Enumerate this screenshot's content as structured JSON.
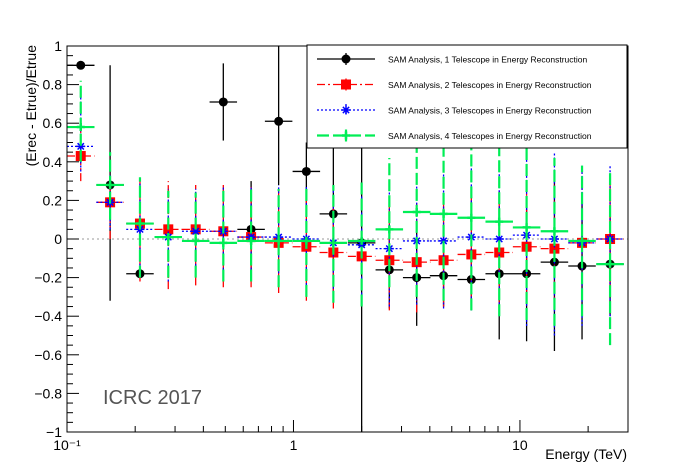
{
  "chart_data": {
    "type": "scatter",
    "xscale": "log",
    "xlim": [
      0.1,
      30
    ],
    "ylim": [
      -1,
      1
    ],
    "xlabel": "Energy (TeV)",
    "ylabel": "(Erec - Etrue)/Etrue",
    "annotation": "ICRC 2017",
    "y_ticks": [
      -1,
      -0.8,
      -0.6,
      -0.4,
      -0.2,
      0,
      0.2,
      0.4,
      0.6,
      0.8,
      1
    ],
    "y_tick_labels": [
      "−1",
      "−0.8",
      "−0.6",
      "−0.4",
      "−0.2",
      "0",
      "0.2",
      "0.4",
      "0.6",
      "0.8",
      "1"
    ],
    "x_ticks": [
      0.1,
      1,
      10
    ],
    "x_tick_labels": [
      "10⁻¹",
      "1",
      "10"
    ],
    "reference_line": 0,
    "legend_position": "top-right",
    "series": [
      {
        "name": "SAM Analysis, 1 Telescope in Energy Reconstruction",
        "color": "#000000",
        "marker": "circle",
        "line": "solid",
        "x": [
          0.115,
          0.155,
          0.21,
          0.28,
          0.37,
          0.49,
          0.65,
          0.86,
          1.14,
          1.5,
          2.0,
          2.65,
          3.5,
          4.6,
          6.1,
          8.1,
          10.7,
          14.2,
          18.8,
          25.0
        ],
        "y": [
          0.9,
          0.28,
          -0.18,
          null,
          null,
          0.71,
          0.05,
          0.61,
          0.35,
          0.13,
          -0.02,
          -0.16,
          -0.2,
          -0.19,
          -0.21,
          -0.18,
          -0.18,
          -0.12,
          -0.14,
          -0.13
        ],
        "ylow": [
          0.9,
          -0.32,
          -0.18,
          null,
          null,
          0.51,
          -0.2,
          0.28,
          0.14,
          -0.32,
          -1.0,
          -0.36,
          -0.45,
          -0.35,
          -0.37,
          -0.52,
          -0.53,
          -0.58,
          -0.52,
          -0.4
        ],
        "yhigh": [
          0.9,
          0.9,
          -0.18,
          null,
          null,
          0.91,
          0.3,
          1.0,
          0.5,
          0.57,
          0.95,
          0.05,
          0.05,
          0.0,
          -0.05,
          0.17,
          0.16,
          0.34,
          0.24,
          0.12
        ]
      },
      {
        "name": "SAM Analysis, 2 Telescopes in Energy Reconstruction",
        "color": "#ff0000",
        "marker": "square",
        "line": "dashdot",
        "x": [
          0.115,
          0.155,
          0.21,
          0.28,
          0.37,
          0.49,
          0.65,
          0.86,
          1.14,
          1.5,
          2.0,
          2.65,
          3.5,
          4.6,
          6.1,
          8.1,
          10.7,
          14.2,
          18.8,
          25.0
        ],
        "y": [
          0.43,
          0.19,
          0.08,
          0.05,
          0.05,
          0.04,
          0.01,
          -0.02,
          -0.04,
          -0.07,
          -0.09,
          -0.11,
          -0.12,
          -0.11,
          -0.08,
          -0.07,
          -0.04,
          -0.05,
          -0.02,
          0.0
        ],
        "ylow": [
          0.3,
          0.0,
          -0.22,
          -0.26,
          -0.24,
          -0.25,
          -0.25,
          -0.28,
          -0.32,
          -0.36,
          -0.35,
          -0.37,
          -0.38,
          -0.35,
          -0.32,
          -0.35,
          -0.33,
          -0.34,
          -0.3,
          -0.25
        ],
        "yhigh": [
          0.56,
          0.32,
          0.31,
          0.3,
          0.28,
          0.28,
          0.27,
          0.27,
          0.24,
          0.22,
          0.2,
          0.2,
          0.2,
          0.21,
          0.24,
          0.25,
          0.28,
          0.3,
          0.34,
          0.32
        ]
      },
      {
        "name": "SAM Analysis, 3 Telescopes in Energy Reconstruction",
        "color": "#0000ff",
        "marker": "star",
        "line": "dotted",
        "x": [
          0.115,
          0.155,
          0.21,
          0.28,
          0.37,
          0.49,
          0.65,
          0.86,
          1.14,
          1.5,
          2.0,
          2.65,
          3.5,
          4.6,
          6.1,
          8.1,
          10.7,
          14.2,
          18.8,
          25.0
        ],
        "y": [
          0.48,
          0.19,
          0.05,
          0.01,
          0.04,
          0.04,
          0.01,
          0.01,
          0.0,
          -0.02,
          -0.03,
          -0.05,
          -0.01,
          -0.01,
          0.01,
          0.0,
          0.02,
          0.0,
          -0.02,
          0.0
        ],
        "ylow": [
          0.35,
          0.05,
          -0.2,
          -0.22,
          -0.18,
          -0.2,
          -0.22,
          -0.24,
          -0.28,
          -0.32,
          -0.35,
          -0.35,
          -0.34,
          -0.36,
          -0.37,
          -0.4,
          -0.45,
          -0.5,
          -0.45,
          -0.4
        ],
        "yhigh": [
          0.75,
          0.34,
          0.3,
          0.26,
          0.26,
          0.27,
          0.27,
          0.28,
          0.28,
          0.28,
          0.28,
          0.3,
          0.33,
          0.36,
          0.38,
          0.4,
          0.42,
          0.45,
          0.38,
          0.38
        ]
      },
      {
        "name": "SAM Analysis, 4 Telescopes in Energy Reconstruction",
        "color": "#00ee55",
        "marker": "cross",
        "line": "longdash",
        "x": [
          0.115,
          0.155,
          0.21,
          0.28,
          0.37,
          0.49,
          0.65,
          0.86,
          1.14,
          1.5,
          2.0,
          2.65,
          3.5,
          4.6,
          6.1,
          8.1,
          10.7,
          14.2,
          18.8,
          25.0
        ],
        "y": [
          0.58,
          0.28,
          0.08,
          0.01,
          -0.01,
          -0.02,
          -0.01,
          -0.01,
          -0.01,
          -0.02,
          -0.01,
          0.05,
          0.14,
          0.13,
          0.11,
          0.09,
          0.06,
          0.04,
          -0.01,
          -0.13
        ],
        "ylow": [
          0.4,
          0.1,
          -0.2,
          -0.2,
          -0.2,
          -0.22,
          -0.22,
          -0.25,
          -0.3,
          -0.33,
          -0.35,
          -0.25,
          -0.3,
          -0.32,
          -0.37,
          -0.4,
          -0.42,
          -0.45,
          -0.4,
          -0.55
        ],
        "yhigh": [
          0.82,
          0.45,
          0.32,
          0.25,
          0.24,
          0.25,
          0.26,
          0.26,
          0.26,
          0.28,
          0.3,
          0.42,
          0.6,
          0.62,
          0.6,
          0.55,
          0.48,
          0.42,
          0.38,
          0.36
        ]
      }
    ]
  }
}
